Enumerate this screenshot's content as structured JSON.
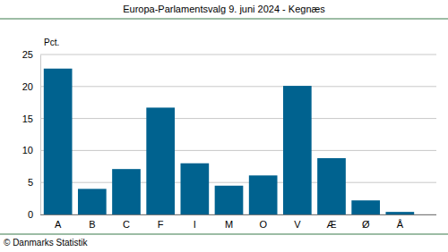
{
  "chart_data": {
    "type": "bar",
    "title": "Europa-Parlamentsvalg 9. juni 2024 - Kegnæs",
    "y_label": "Pct.",
    "source": "© Danmarks Statistik",
    "categories": [
      "A",
      "B",
      "C",
      "F",
      "I",
      "M",
      "O",
      "V",
      "Æ",
      "Ø",
      "Å"
    ],
    "values": [
      22.8,
      4.0,
      7.1,
      16.7,
      8.0,
      4.5,
      6.1,
      20.1,
      8.8,
      2.2,
      0.4
    ],
    "color": "#00628f",
    "ylim": [
      0,
      25
    ],
    "yticks": [
      0,
      5,
      10,
      15,
      20,
      25
    ],
    "grid": true
  }
}
